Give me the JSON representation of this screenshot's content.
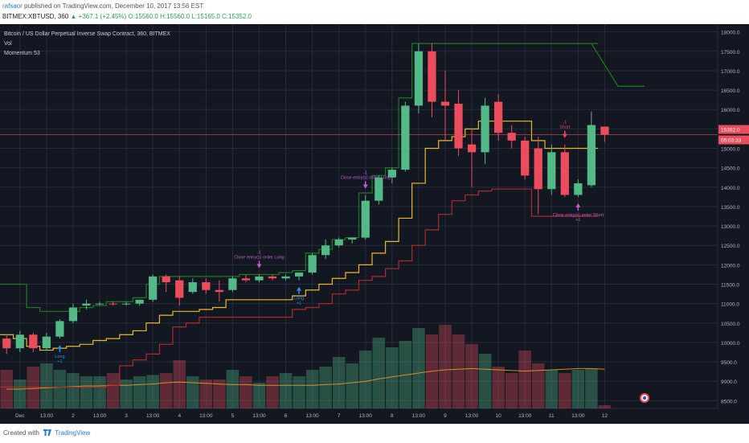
{
  "header": {
    "author": "rafsaor",
    "published_text": "published on TradingView.com, December 10, 2017 13:56 EST",
    "symbol_line": "BITMEX:XBTUSD, 360",
    "change_text": "+367.1 (+2.45%)",
    "o": "O:15560.0",
    "h": "H:15560.0",
    "l": "L:15165.0",
    "c": "C:15352.0"
  },
  "legend": {
    "title": "Bitcoin / US Dollar Perpetual Inverse Swap Contract, 360, BITMEX",
    "vol": "Vol",
    "momentum": "Momentum 53"
  },
  "footer": {
    "created_with": "Created with",
    "brand": "TradingView"
  },
  "colors": {
    "background": "#131722",
    "up": "#53b987",
    "down": "#eb4d5c",
    "upper_band": "#1f7a1f",
    "middle_band": "#e8b82a",
    "lower_band": "#b02a2a",
    "vol_ma": "#f5a623",
    "grid": "#262b3a",
    "axis_text": "#b2b5be"
  },
  "chart_data": {
    "type": "candlestick",
    "y_axis": {
      "ticks": [
        8500,
        9000,
        9500,
        10000,
        10500,
        11000,
        11500,
        12000,
        12500,
        13000,
        13500,
        14000,
        14500,
        15000,
        15500,
        16000,
        16500,
        17000,
        17500,
        18000
      ],
      "tick_labels": [
        "8500.0",
        "9000.0",
        "9500.0",
        "10000.0",
        "10500.0",
        "11000.0",
        "11500.0",
        "12000.0",
        "12500.0",
        "13000.0",
        "13500.0",
        "14000.0",
        "14500.0",
        "15000.0",
        "15500.0",
        "16000.0",
        "16500.0",
        "17000.0",
        "17500.0",
        "18000.0"
      ],
      "ylim": [
        8300,
        18200
      ]
    },
    "x_axis": {
      "bar_count": 54,
      "ticks": [
        {
          "bar": 1,
          "label": "Dec"
        },
        {
          "bar": 3,
          "label": "13:00"
        },
        {
          "bar": 5,
          "label": "2"
        },
        {
          "bar": 7,
          "label": "13:00"
        },
        {
          "bar": 9,
          "label": "3"
        },
        {
          "bar": 11,
          "label": "13:00"
        },
        {
          "bar": 13,
          "label": "4"
        },
        {
          "bar": 15,
          "label": "13:00"
        },
        {
          "bar": 17,
          "label": "5"
        },
        {
          "bar": 19,
          "label": "13:00"
        },
        {
          "bar": 21,
          "label": "6"
        },
        {
          "bar": 23,
          "label": "13:00"
        },
        {
          "bar": 25,
          "label": "7"
        },
        {
          "bar": 27,
          "label": "13:00"
        },
        {
          "bar": 29,
          "label": "8"
        },
        {
          "bar": 31,
          "label": "13:00"
        },
        {
          "bar": 33,
          "label": "9"
        },
        {
          "bar": 35,
          "label": "13:00"
        },
        {
          "bar": 37,
          "label": "10"
        },
        {
          "bar": 39,
          "label": "13:00"
        },
        {
          "bar": 41,
          "label": "11"
        },
        {
          "bar": 43,
          "label": "13:00"
        },
        {
          "bar": 45,
          "label": "12"
        }
      ]
    },
    "candles": [
      {
        "o": 10100,
        "h": 10200,
        "l": 9700,
        "c": 9850
      },
      {
        "o": 9850,
        "h": 10300,
        "l": 9750,
        "c": 10200
      },
      {
        "o": 10200,
        "h": 10250,
        "l": 9750,
        "c": 9850
      },
      {
        "o": 9850,
        "h": 10250,
        "l": 9800,
        "c": 10150
      },
      {
        "o": 10150,
        "h": 10600,
        "l": 10100,
        "c": 10550
      },
      {
        "o": 10550,
        "h": 11000,
        "l": 10500,
        "c": 10900
      },
      {
        "o": 10950,
        "h": 11100,
        "l": 10850,
        "c": 11000
      },
      {
        "o": 11000,
        "h": 11050,
        "l": 10950,
        "c": 11000
      },
      {
        "o": 11000,
        "h": 11050,
        "l": 10950,
        "c": 10980
      },
      {
        "o": 10980,
        "h": 11050,
        "l": 10950,
        "c": 11000
      },
      {
        "o": 11000,
        "h": 11100,
        "l": 10950,
        "c": 11100
      },
      {
        "o": 11100,
        "h": 11750,
        "l": 11050,
        "c": 11700
      },
      {
        "o": 11700,
        "h": 11750,
        "l": 11300,
        "c": 11550
      },
      {
        "o": 11600,
        "h": 11700,
        "l": 10950,
        "c": 11150
      },
      {
        "o": 11300,
        "h": 11650,
        "l": 11250,
        "c": 11550
      },
      {
        "o": 11550,
        "h": 11650,
        "l": 11250,
        "c": 11350
      },
      {
        "o": 11350,
        "h": 11600,
        "l": 11050,
        "c": 11300
      },
      {
        "o": 11350,
        "h": 11700,
        "l": 11300,
        "c": 11650
      },
      {
        "o": 11650,
        "h": 11750,
        "l": 11550,
        "c": 11600
      },
      {
        "o": 11600,
        "h": 11750,
        "l": 11550,
        "c": 11700
      },
      {
        "o": 11700,
        "h": 11750,
        "l": 11600,
        "c": 11650
      },
      {
        "o": 11650,
        "h": 11750,
        "l": 11600,
        "c": 11700
      },
      {
        "o": 11700,
        "h": 11800,
        "l": 11600,
        "c": 11800
      },
      {
        "o": 11800,
        "h": 12300,
        "l": 11750,
        "c": 12250
      },
      {
        "o": 12250,
        "h": 12650,
        "l": 12150,
        "c": 12500
      },
      {
        "o": 12500,
        "h": 12700,
        "l": 12450,
        "c": 12650
      },
      {
        "o": 12650,
        "h": 12700,
        "l": 12550,
        "c": 12700
      },
      {
        "o": 12700,
        "h": 13800,
        "l": 12650,
        "c": 13650
      },
      {
        "o": 13650,
        "h": 14300,
        "l": 13550,
        "c": 14250
      },
      {
        "o": 14250,
        "h": 14500,
        "l": 14100,
        "c": 14450
      },
      {
        "o": 14450,
        "h": 16200,
        "l": 14400,
        "c": 16100
      },
      {
        "o": 16100,
        "h": 17700,
        "l": 15900,
        "c": 17500
      },
      {
        "o": 17500,
        "h": 17700,
        "l": 15800,
        "c": 16200
      },
      {
        "o": 16200,
        "h": 17000,
        "l": 15200,
        "c": 16100
      },
      {
        "o": 16150,
        "h": 16500,
        "l": 14800,
        "c": 15000
      },
      {
        "o": 15100,
        "h": 15500,
        "l": 14000,
        "c": 14900
      },
      {
        "o": 14900,
        "h": 16300,
        "l": 14600,
        "c": 16100
      },
      {
        "o": 16200,
        "h": 16400,
        "l": 15200,
        "c": 15400
      },
      {
        "o": 15400,
        "h": 15600,
        "l": 15000,
        "c": 15200
      },
      {
        "o": 15200,
        "h": 15300,
        "l": 14200,
        "c": 14300
      },
      {
        "o": 15000,
        "h": 15300,
        "l": 13300,
        "c": 13950
      },
      {
        "o": 13950,
        "h": 15100,
        "l": 13800,
        "c": 14900
      },
      {
        "o": 14900,
        "h": 15100,
        "l": 13750,
        "c": 13800
      },
      {
        "o": 13800,
        "h": 14200,
        "l": 13750,
        "c": 14100
      },
      {
        "o": 14050,
        "h": 15950,
        "l": 14000,
        "c": 15600
      },
      {
        "o": 15560,
        "h": 15560,
        "l": 15165,
        "c": 15352
      }
    ],
    "bands": {
      "upper": [
        11500,
        11500,
        10900,
        10800,
        10800,
        10800,
        10900,
        10950,
        11050,
        11050,
        11150,
        11500,
        11700,
        11700,
        11700,
        11700,
        11700,
        11700,
        11750,
        11750,
        11750,
        11800,
        11850,
        12300,
        12400,
        12650,
        12700,
        13850,
        14300,
        14500,
        16300,
        17700,
        17700,
        17700,
        17700,
        17700,
        17700,
        17700,
        17700,
        17700,
        17700,
        17700,
        17700,
        17700,
        17700,
        null
      ],
      "middle": [
        10200,
        10100,
        9900,
        9800,
        9850,
        9900,
        9950,
        10050,
        10100,
        10200,
        10300,
        10500,
        10700,
        10800,
        10800,
        10850,
        10900,
        11100,
        11100,
        11100,
        11100,
        11100,
        11200,
        11350,
        11500,
        11650,
        11800,
        12000,
        12300,
        12600,
        13200,
        14100,
        15000,
        15200,
        15300,
        15500,
        15700,
        15700,
        15700,
        15700,
        15200,
        15000,
        15000,
        15000,
        15000,
        null
      ],
      "lower": [
        8850,
        8850,
        8850,
        8850,
        8850,
        8850,
        8850,
        8850,
        8900,
        9400,
        9550,
        9700,
        9950,
        10400,
        10500,
        10650,
        10650,
        10650,
        10650,
        10650,
        10650,
        10650,
        10850,
        10900,
        11000,
        11250,
        11350,
        11600,
        11700,
        11900,
        12100,
        12500,
        12900,
        13300,
        13650,
        13800,
        13900,
        13950,
        13950,
        13950,
        13250,
        13250,
        13250,
        13250,
        13250,
        null
      ],
      "upper_future": [
        17700,
        16600,
        16600
      ],
      "last_level": 15352
    },
    "volume": {
      "values": [
        60,
        45,
        65,
        70,
        60,
        55,
        50,
        50,
        55,
        45,
        50,
        52,
        55,
        75,
        50,
        45,
        45,
        60,
        50,
        40,
        50,
        55,
        50,
        60,
        65,
        80,
        70,
        90,
        110,
        95,
        105,
        125,
        115,
        130,
        115,
        100,
        85,
        65,
        55,
        90,
        70,
        60,
        55,
        60,
        62,
        5
      ],
      "ma": [
        30,
        30,
        31,
        32,
        33,
        34,
        35,
        35,
        36,
        36,
        37,
        38,
        40,
        41,
        40,
        39,
        38,
        37,
        37,
        36,
        36,
        36,
        36,
        36,
        37,
        38,
        40,
        42,
        46,
        49,
        52,
        55,
        58,
        60,
        61,
        62,
        61,
        60,
        59,
        58,
        59,
        60,
        61,
        62,
        62,
        61
      ]
    },
    "annotations": [
      {
        "bar": 4,
        "text": "Long",
        "sub": "+1",
        "dir": "up"
      },
      {
        "bar": 19,
        "text": "Close entry(s) order Long",
        "sub": "-1",
        "dir": "down"
      },
      {
        "bar": 22,
        "text": "Long",
        "sub": "+1",
        "dir": "up"
      },
      {
        "bar": 27,
        "text": "Close entry(s) order Long",
        "sub": "-1",
        "dir": "down"
      },
      {
        "bar": 42,
        "text": "Short",
        "sub": "-1",
        "dir": "down"
      },
      {
        "bar": 43,
        "text": "Close entry(s) order Short",
        "sub": "+1",
        "dir": "up"
      }
    ],
    "price_labels": [
      "15352.0",
      "05:03:33"
    ]
  }
}
